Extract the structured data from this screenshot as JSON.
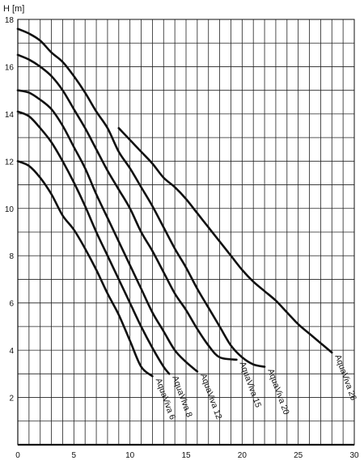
{
  "chart_data": {
    "type": "line",
    "title": "",
    "xlabel": "",
    "ylabel": "H [m]",
    "xlim": [
      0,
      30
    ],
    "ylim": [
      0,
      18
    ],
    "grid": true,
    "legend": "none",
    "x_ticks": [
      {
        "value": 0,
        "label": "0"
      },
      {
        "value": 5,
        "label": "5"
      },
      {
        "value": 10,
        "label": "10"
      },
      {
        "value": 15,
        "label": "15"
      },
      {
        "value": 20,
        "label": "20"
      },
      {
        "value": 25,
        "label": "25"
      },
      {
        "value": 30,
        "label": "30"
      }
    ],
    "y_ticks": [
      {
        "value": 2,
        "label": "2"
      },
      {
        "value": 4,
        "label": "4"
      },
      {
        "value": 6,
        "label": "6"
      },
      {
        "value": 8,
        "label": "8"
      },
      {
        "value": 10,
        "label": "10"
      },
      {
        "value": 12,
        "label": "12"
      },
      {
        "value": 14,
        "label": "14"
      },
      {
        "value": 16,
        "label": "16"
      },
      {
        "value": 18,
        "label": "18"
      }
    ],
    "colors": {
      "curve": "#111111",
      "grid": "#222222",
      "background": "#ffffff"
    },
    "series": [
      {
        "name": "AquaViva 6",
        "points": [
          [
            0,
            12.0
          ],
          [
            1,
            11.8
          ],
          [
            2,
            11.3
          ],
          [
            3,
            10.6
          ],
          [
            4,
            9.7
          ],
          [
            5,
            9.1
          ],
          [
            6,
            8.3
          ],
          [
            7,
            7.4
          ],
          [
            8,
            6.4
          ],
          [
            9,
            5.5
          ],
          [
            10,
            4.4
          ],
          [
            11,
            3.3
          ],
          [
            12,
            2.9
          ]
        ]
      },
      {
        "name": "AquaViva 8",
        "points": [
          [
            0,
            14.1
          ],
          [
            1,
            13.9
          ],
          [
            2,
            13.4
          ],
          [
            3,
            12.8
          ],
          [
            4,
            12.0
          ],
          [
            5,
            11.1
          ],
          [
            6,
            10.1
          ],
          [
            7,
            9.0
          ],
          [
            8,
            8.0
          ],
          [
            9,
            7.0
          ],
          [
            10,
            6.0
          ],
          [
            11,
            5.0
          ],
          [
            12,
            4.1
          ],
          [
            13,
            3.3
          ],
          [
            13.5,
            3.0
          ]
        ]
      },
      {
        "name": "AquaViva 12",
        "points": [
          [
            0,
            15.0
          ],
          [
            1,
            14.9
          ],
          [
            2,
            14.6
          ],
          [
            3,
            14.2
          ],
          [
            4,
            13.5
          ],
          [
            5,
            12.6
          ],
          [
            6,
            11.7
          ],
          [
            7,
            10.6
          ],
          [
            8,
            9.6
          ],
          [
            9,
            8.6
          ],
          [
            10,
            7.6
          ],
          [
            11,
            6.6
          ],
          [
            12,
            5.6
          ],
          [
            13,
            4.8
          ],
          [
            14,
            4.0
          ],
          [
            15,
            3.5
          ],
          [
            16,
            3.1
          ]
        ]
      },
      {
        "name": "AquaViva 15",
        "points": [
          [
            0,
            16.5
          ],
          [
            1,
            16.3
          ],
          [
            2,
            16.0
          ],
          [
            3,
            15.6
          ],
          [
            4,
            15.0
          ],
          [
            5,
            14.2
          ],
          [
            6,
            13.4
          ],
          [
            7,
            12.5
          ],
          [
            8,
            11.6
          ],
          [
            9,
            10.8
          ],
          [
            10,
            10.0
          ],
          [
            11,
            9.0
          ],
          [
            12,
            8.2
          ],
          [
            13,
            7.3
          ],
          [
            14,
            6.4
          ],
          [
            15,
            5.7
          ],
          [
            16,
            4.9
          ],
          [
            17,
            4.2
          ],
          [
            18,
            3.7
          ],
          [
            19.5,
            3.6
          ]
        ]
      },
      {
        "name": "AquaViva 20",
        "points": [
          [
            0,
            17.6
          ],
          [
            1,
            17.4
          ],
          [
            2,
            17.1
          ],
          [
            3,
            16.6
          ],
          [
            4,
            16.2
          ],
          [
            5,
            15.6
          ],
          [
            6,
            14.9
          ],
          [
            7,
            14.1
          ],
          [
            8,
            13.4
          ],
          [
            9,
            12.4
          ],
          [
            10,
            11.7
          ],
          [
            11,
            10.9
          ],
          [
            12,
            10.1
          ],
          [
            13,
            9.2
          ],
          [
            14,
            8.3
          ],
          [
            15,
            7.5
          ],
          [
            16,
            6.6
          ],
          [
            17,
            5.8
          ],
          [
            18,
            5.0
          ],
          [
            19,
            4.2
          ],
          [
            20,
            3.7
          ],
          [
            21,
            3.4
          ],
          [
            22,
            3.3
          ]
        ]
      },
      {
        "name": "AquaViva 26",
        "points": [
          [
            9,
            13.4
          ],
          [
            10,
            12.9
          ],
          [
            11,
            12.4
          ],
          [
            12,
            11.9
          ],
          [
            13,
            11.3
          ],
          [
            14,
            10.9
          ],
          [
            15,
            10.4
          ],
          [
            16,
            9.8
          ],
          [
            17,
            9.2
          ],
          [
            18,
            8.6
          ],
          [
            19,
            8.0
          ],
          [
            20,
            7.4
          ],
          [
            21,
            6.9
          ],
          [
            22,
            6.5
          ],
          [
            23,
            6.1
          ],
          [
            24,
            5.6
          ],
          [
            25,
            5.1
          ],
          [
            26,
            4.7
          ],
          [
            27,
            4.3
          ],
          [
            28,
            3.9
          ]
        ]
      }
    ]
  }
}
